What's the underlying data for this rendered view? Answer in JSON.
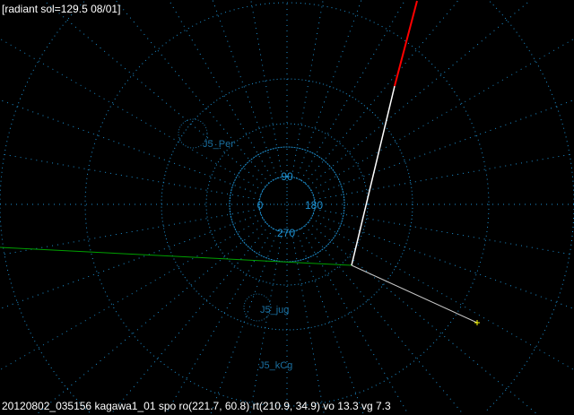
{
  "header": {
    "radiant_info": "[radiant sol=129.5 08/01]"
  },
  "footer": {
    "status": "20120802_035156 kagawa1_01 spo ro(221.7, 60.8) rt(210.9, 34.9) vo 13.3 vg 7.3"
  },
  "grid": {
    "angle_labels": [
      "90",
      "0",
      "180",
      "270"
    ],
    "color": "#1e90d0"
  },
  "radiants": [
    {
      "name": "J5_Per"
    },
    {
      "name": "J5_jug"
    },
    {
      "name": "J5_kCg"
    }
  ],
  "colors": {
    "trail": "#ffffff",
    "trail_end": "#ff0000",
    "horizon": "#00a000",
    "marker": "#ffff00"
  }
}
